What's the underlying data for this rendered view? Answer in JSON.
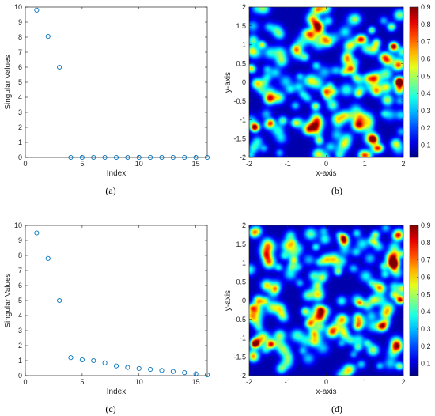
{
  "chart_data": [
    {
      "id": "a",
      "type": "scatter",
      "caption": "(a)",
      "xlabel": "Index",
      "ylabel": "Singular Values",
      "xlim": [
        0,
        16
      ],
      "ylim": [
        0,
        10
      ],
      "xticks": [
        "0",
        "5",
        "10",
        "15"
      ],
      "yticks": [
        "0",
        "1",
        "2",
        "3",
        "4",
        "5",
        "6",
        "7",
        "8",
        "9",
        "10"
      ],
      "marker": "open-circle",
      "marker_color": "#0072BD",
      "x": [
        1,
        2,
        3,
        4,
        5,
        6,
        7,
        8,
        9,
        10,
        11,
        12,
        13,
        14,
        15,
        16
      ],
      "y": [
        9.8,
        8.05,
        6.0,
        0,
        0,
        0,
        0,
        0,
        0,
        0,
        0,
        0,
        0,
        0,
        0,
        0
      ]
    },
    {
      "id": "b",
      "type": "heatmap",
      "caption": "(b)",
      "xlabel": "x-axis",
      "ylabel": "y-axis",
      "xlim": [
        -2,
        2
      ],
      "ylim": [
        -2,
        2
      ],
      "xticks": [
        "-2",
        "-1",
        "0",
        "1",
        "2"
      ],
      "yticks": [
        "-2",
        "-1.5",
        "-1",
        "-0.5",
        "0",
        "0.5",
        "1",
        "1.5",
        "2"
      ],
      "colormap": "jet",
      "colorbar_ticks": [
        "0.1",
        "0.2",
        "0.3",
        "0.4",
        "0.5",
        "0.6",
        "0.7",
        "0.8",
        "0.9"
      ],
      "colorbar_range": [
        0.03,
        0.9
      ],
      "peaks": [
        {
          "x": 1.75,
          "y": 0.95,
          "value": 0.9
        },
        {
          "x": 1.9,
          "y": 0.02,
          "value": 0.85
        },
        {
          "x": -1.85,
          "y": -1.2,
          "value": 0.9
        }
      ]
    },
    {
      "id": "c",
      "type": "scatter",
      "caption": "(c)",
      "xlabel": "Index",
      "ylabel": "Singular Values",
      "xlim": [
        0,
        16
      ],
      "ylim": [
        0,
        10
      ],
      "xticks": [
        "0",
        "5",
        "10",
        "15"
      ],
      "yticks": [
        "0",
        "1",
        "2",
        "3",
        "4",
        "5",
        "6",
        "7",
        "8",
        "9",
        "10"
      ],
      "marker": "open-circle",
      "marker_color": "#0072BD",
      "x": [
        1,
        2,
        3,
        4,
        5,
        6,
        7,
        8,
        9,
        10,
        11,
        12,
        13,
        14,
        15,
        16
      ],
      "y": [
        9.5,
        7.8,
        5.0,
        1.2,
        1.05,
        1.0,
        0.85,
        0.65,
        0.55,
        0.48,
        0.42,
        0.35,
        0.28,
        0.2,
        0.12,
        0.05
      ]
    },
    {
      "id": "d",
      "type": "heatmap",
      "caption": "(d)",
      "xlabel": "x-axis",
      "ylabel": "y-axis",
      "xlim": [
        -2,
        2
      ],
      "ylim": [
        -2,
        2
      ],
      "xticks": [
        "-2",
        "-1",
        "0",
        "1",
        "2"
      ],
      "yticks": [
        "-2",
        "-1.5",
        "-1",
        "-0.5",
        "0",
        "0.5",
        "1",
        "1.5",
        "2"
      ],
      "colormap": "jet",
      "colorbar_ticks": [
        "0.1",
        "0.2",
        "0.3",
        "0.4",
        "0.5",
        "0.6",
        "0.7",
        "0.8",
        "0.9"
      ],
      "colorbar_range": [
        0.03,
        0.9
      ],
      "peaks": [
        {
          "x": 1.75,
          "y": 0.98,
          "value": 0.9
        },
        {
          "x": 1.92,
          "y": 0.02,
          "value": 0.8
        },
        {
          "x": -1.85,
          "y": -1.15,
          "value": 0.9
        }
      ]
    }
  ]
}
